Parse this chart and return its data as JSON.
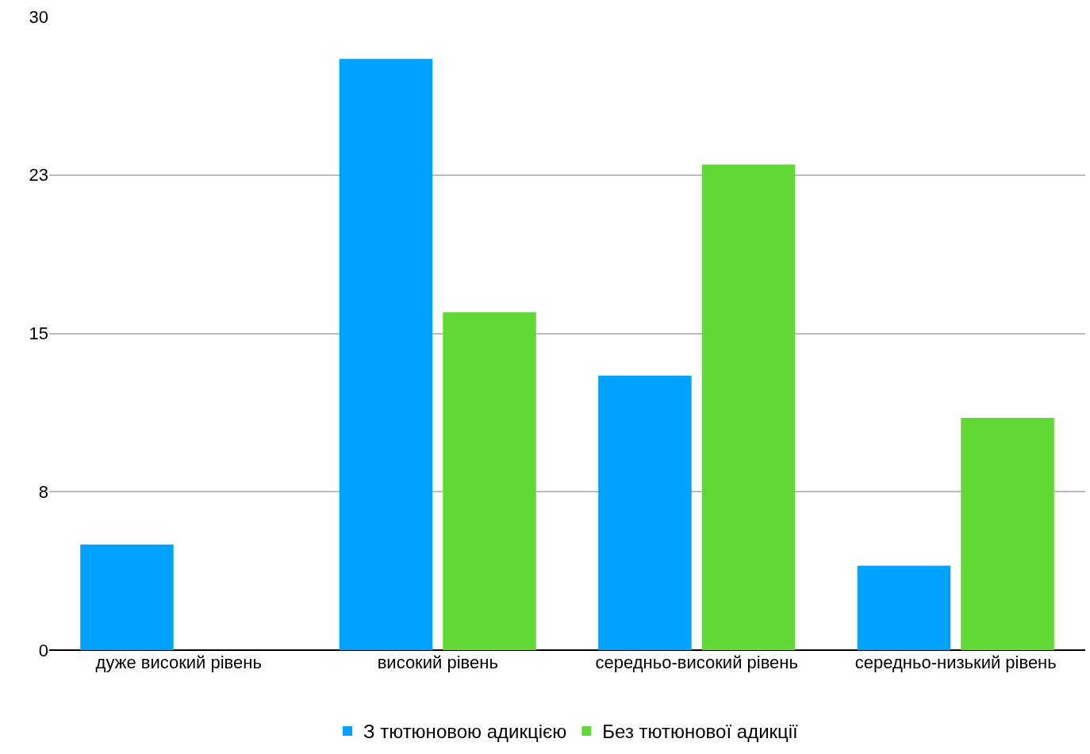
{
  "chart_data": {
    "type": "bar",
    "categories": [
      "дуже високий рівень",
      "високий рівень",
      "середньо-високий рівень",
      "середньо-низький рівень"
    ],
    "series": [
      {
        "name": "З тютюновою адикцією",
        "color": "#00a2ff",
        "values": [
          5,
          28,
          13,
          4
        ]
      },
      {
        "name": "Без тютюнової адикції",
        "color": "#61d836",
        "values": [
          0,
          16,
          23,
          11
        ]
      }
    ],
    "ylim": [
      0,
      30
    ],
    "yticks": [
      0,
      {
        "value": 7.5,
        "label": "8"
      },
      15,
      {
        "value": 22.5,
        "label": "23"
      },
      30
    ],
    "grid": "y",
    "legend": "bottom"
  }
}
